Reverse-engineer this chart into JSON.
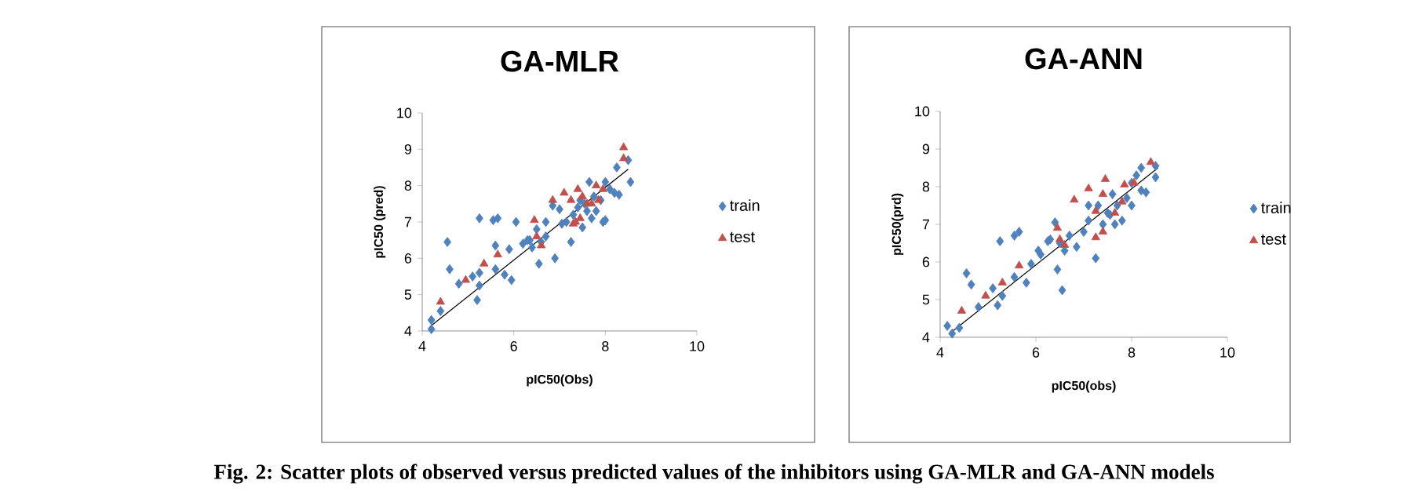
{
  "chart_data": [
    {
      "type": "scatter",
      "title": "GA-MLR",
      "xlabel": "pIC50(Obs)",
      "ylabel": "pIC50 (pred)",
      "xlim": [
        4,
        10
      ],
      "ylim": [
        4,
        10
      ],
      "xticks": [
        4,
        6,
        8,
        10
      ],
      "yticks": [
        4,
        5,
        6,
        7,
        8,
        9,
        10
      ],
      "legend": "right",
      "grid": false,
      "annotations": [
        "Fig. 2: Scatter plots of observed versus predicted values of the inhibitors using GA-MLR and   GA-ANN models"
      ],
      "series": [
        {
          "name": "train",
          "color": "#4f81bd",
          "marker": "diamond",
          "x": [
            4.2,
            4.2,
            4.4,
            4.55,
            4.6,
            4.8,
            5.1,
            5.2,
            5.25,
            5.25,
            5.25,
            5.55,
            5.65,
            5.6,
            5.6,
            5.8,
            5.95,
            5.9,
            6.05,
            6.2,
            6.3,
            6.4,
            6.5,
            6.55,
            6.6,
            6.7,
            6.7,
            6.9,
            6.85,
            7.0,
            7.05,
            7.15,
            7.25,
            7.3,
            7.4,
            7.5,
            7.6,
            7.65,
            7.7,
            7.75,
            7.8,
            7.9,
            7.95,
            8.0,
            8.0,
            8.1,
            8.2,
            8.25,
            8.3,
            8.5,
            8.55,
            7.45,
            7.55,
            6.35
          ],
          "values": [
            4.3,
            4.05,
            4.55,
            6.45,
            5.7,
            5.3,
            5.5,
            4.85,
            5.25,
            5.6,
            7.1,
            7.05,
            7.1,
            6.35,
            5.7,
            5.55,
            5.4,
            6.25,
            7.0,
            6.4,
            6.5,
            6.3,
            6.8,
            5.85,
            6.45,
            7.0,
            6.6,
            6.0,
            7.45,
            7.35,
            6.95,
            7.0,
            6.45,
            7.2,
            7.4,
            6.85,
            7.3,
            8.1,
            7.1,
            7.7,
            7.3,
            7.6,
            7.0,
            7.05,
            8.1,
            7.9,
            7.8,
            8.5,
            7.75,
            8.7,
            8.1,
            7.6,
            7.5,
            6.5
          ]
        },
        {
          "name": "test",
          "color": "#c0504d",
          "marker": "triangle",
          "x": [
            4.4,
            4.95,
            5.35,
            5.65,
            6.45,
            6.5,
            6.6,
            6.85,
            7.1,
            7.25,
            7.3,
            7.35,
            7.4,
            7.45,
            7.5,
            7.6,
            7.7,
            7.8,
            7.85,
            7.95,
            8.4,
            8.4
          ],
          "values": [
            4.8,
            5.4,
            5.85,
            6.1,
            7.05,
            6.6,
            6.35,
            7.6,
            7.8,
            7.6,
            6.95,
            7.0,
            7.9,
            7.1,
            7.7,
            7.5,
            7.5,
            8.0,
            7.6,
            7.9,
            9.05,
            8.75
          ]
        },
        {
          "type": "line",
          "color": "#000000",
          "marker": "none",
          "x": [
            4.2,
            8.5
          ],
          "values": [
            4.15,
            8.45
          ]
        }
      ]
    },
    {
      "type": "scatter",
      "title": "GA-ANN",
      "xlabel": "pIC50(obs)",
      "ylabel": "pIC50(prd)",
      "xlim": [
        4,
        10
      ],
      "ylim": [
        4,
        10
      ],
      "xticks": [
        4,
        6,
        8,
        10
      ],
      "yticks": [
        4,
        5,
        6,
        7,
        8,
        9,
        10
      ],
      "legend": "right",
      "grid": false,
      "series": [
        {
          "name": "train",
          "color": "#4f81bd",
          "marker": "diamond",
          "x": [
            4.15,
            4.25,
            4.4,
            4.55,
            4.65,
            4.8,
            5.1,
            5.2,
            5.25,
            5.3,
            5.55,
            5.65,
            5.55,
            5.8,
            5.9,
            6.05,
            6.1,
            6.3,
            6.4,
            6.45,
            6.5,
            6.55,
            6.6,
            6.7,
            6.85,
            7.0,
            7.1,
            7.1,
            7.25,
            7.3,
            7.4,
            7.5,
            7.6,
            7.65,
            7.7,
            7.8,
            7.9,
            8.0,
            8.0,
            8.1,
            8.2,
            8.2,
            8.3,
            8.5,
            8.5,
            7.55,
            6.25
          ],
          "values": [
            4.3,
            4.1,
            4.25,
            5.7,
            5.4,
            4.8,
            5.3,
            4.85,
            6.55,
            5.1,
            6.7,
            6.8,
            5.6,
            5.45,
            5.95,
            6.3,
            6.2,
            6.6,
            7.05,
            5.8,
            6.5,
            5.25,
            6.3,
            6.7,
            6.4,
            6.8,
            7.5,
            7.1,
            6.1,
            7.5,
            7.0,
            7.3,
            7.8,
            7.0,
            7.5,
            7.1,
            7.7,
            7.5,
            8.1,
            8.3,
            8.5,
            7.9,
            7.85,
            8.55,
            8.25,
            7.25,
            6.55
          ]
        },
        {
          "name": "test",
          "color": "#c0504d",
          "marker": "triangle",
          "x": [
            4.45,
            4.95,
            5.3,
            5.65,
            6.45,
            6.5,
            6.6,
            6.8,
            7.1,
            7.25,
            7.25,
            7.4,
            7.4,
            7.45,
            7.65,
            7.8,
            7.85,
            8.05,
            8.4
          ],
          "values": [
            4.7,
            5.1,
            5.45,
            5.9,
            6.9,
            6.6,
            6.45,
            7.65,
            7.95,
            7.35,
            6.65,
            6.8,
            7.8,
            8.2,
            7.3,
            7.6,
            8.05,
            8.1,
            8.65
          ]
        },
        {
          "type": "line",
          "color": "#000000",
          "marker": "none",
          "x": [
            4.2,
            8.55
          ],
          "values": [
            4.1,
            8.5
          ]
        }
      ]
    }
  ]
}
